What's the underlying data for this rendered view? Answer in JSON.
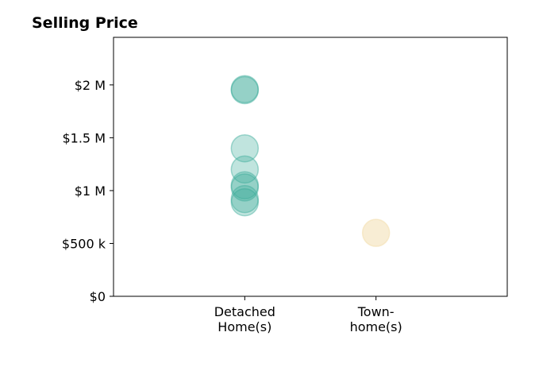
{
  "chart_data": {
    "type": "scatter",
    "title": "Selling Price",
    "xlabel": "",
    "ylabel": "",
    "categories": [
      [
        "Detached",
        "Home(s)"
      ],
      [
        "Town-",
        "home(s)"
      ]
    ],
    "yticks": [
      {
        "value": 0,
        "label": "$0"
      },
      {
        "value": 500000,
        "label": "$500 k"
      },
      {
        "value": 1000000,
        "label": "$1 M"
      },
      {
        "value": 1500000,
        "label": "$1.5 M"
      },
      {
        "value": 2000000,
        "label": "$2 M"
      }
    ],
    "xlim": [
      -1,
      2
    ],
    "ylim": [
      0,
      2450000
    ],
    "grid": false,
    "series": [
      {
        "category_index": 0,
        "color": "#3aaa98",
        "values": [
          1960000,
          1950000,
          1400000,
          1200000,
          1050000,
          1030000,
          920000,
          890000
        ]
      },
      {
        "category_index": 1,
        "color": "#f3dfb0",
        "values": [
          600000
        ]
      }
    ]
  }
}
